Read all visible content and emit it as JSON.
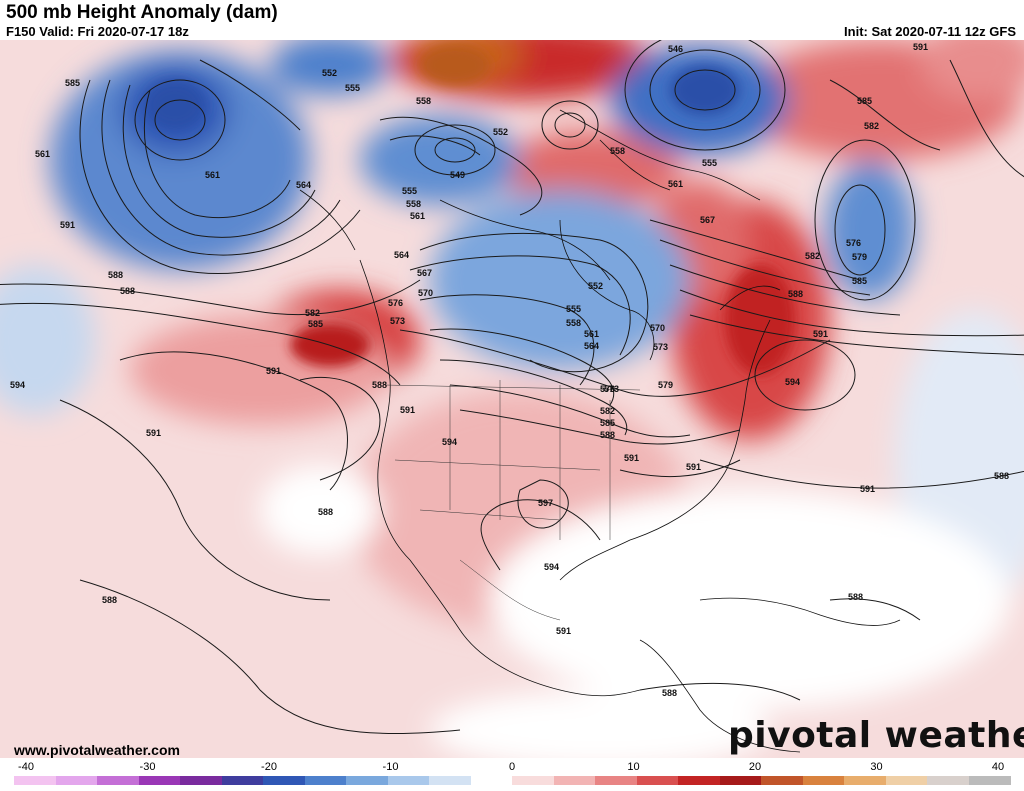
{
  "header": {
    "title": "500 mb Height Anomaly (dam)",
    "valid": "F150 Valid: Fri 2020-07-17 18z",
    "init": "Init: Sat 2020-07-11 12z GFS"
  },
  "footer": {
    "website": "www.pivotalweather.com",
    "logo_text": "pivotal weather"
  },
  "colorbar": {
    "ticks": [
      "-40",
      "-30",
      "-20",
      "-10",
      "0",
      "10",
      "20",
      "30",
      "40"
    ],
    "colors": [
      "#f3c3f0",
      "#e3a6ec",
      "#c46fd6",
      "#9a37b6",
      "#7a2b9e",
      "#3f3d9e",
      "#2f57b5",
      "#4d80cc",
      "#7aa8dd",
      "#a9c8eb",
      "#d3e2f3",
      "#ffffff",
      "#f8dcdc",
      "#f2b4b4",
      "#e88484",
      "#d95050",
      "#c32424",
      "#a61a1a",
      "#c1552a",
      "#d9823e",
      "#e8ad6c",
      "#efcfa6",
      "#d8d0cc",
      "#bbbbbb"
    ]
  },
  "contour_labels": [
    "546",
    "549",
    "552",
    "552",
    "552",
    "555",
    "555",
    "555",
    "555",
    "558",
    "558",
    "558",
    "558",
    "561",
    "561",
    "561",
    "561",
    "561",
    "564",
    "564",
    "564",
    "567",
    "567",
    "570",
    "570",
    "573",
    "573",
    "573",
    "576",
    "576",
    "576",
    "579",
    "579",
    "582",
    "582",
    "582",
    "582",
    "585",
    "585",
    "585",
    "585",
    "585",
    "588",
    "588",
    "588",
    "588",
    "588",
    "588",
    "588",
    "588",
    "588",
    "588",
    "591",
    "591",
    "591",
    "591",
    "591",
    "591",
    "591",
    "591",
    "591",
    "591",
    "594",
    "594",
    "594",
    "594",
    "597"
  ]
}
